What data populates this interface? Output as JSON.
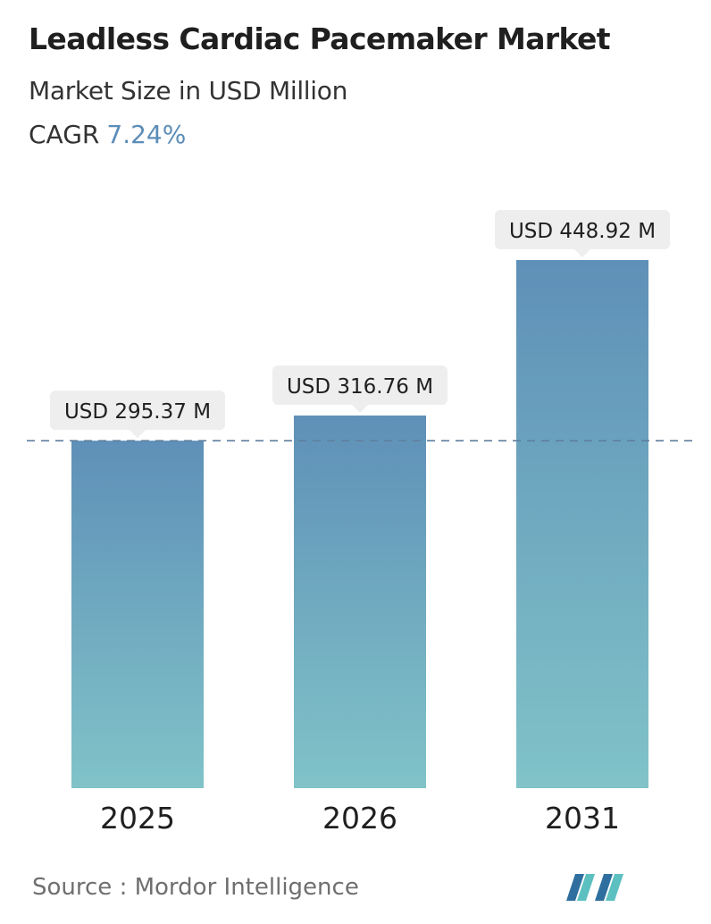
{
  "header": {
    "title": "Leadless Cardiac Pacemaker Market",
    "subtitle": "Market Size in USD Million",
    "cagr_label": "CAGR",
    "cagr_value": "7.24%"
  },
  "chart_data": {
    "type": "bar",
    "categories": [
      "2025",
      "2026",
      "2031"
    ],
    "values": [
      295.37,
      316.76,
      448.92
    ],
    "value_labels": [
      "USD 295.37 M",
      "USD 316.76 M",
      "USD 448.92 M"
    ],
    "reference_line": "dashed line at first bar value",
    "grid": false,
    "legend": "none"
  },
  "footer": {
    "source_label": "Source :",
    "source_name": "Mordor Intelligence",
    "logo_icon": "mordor-intelligence-logo-icon"
  },
  "colors": {
    "bar_top": "#5f90b8",
    "bar_bottom": "#80c3c8",
    "accent": "#5b8db8",
    "dashed_line": "#5f7f9f",
    "label_bg": "#eeeeee",
    "logo_dark": "#2f6f9f",
    "logo_light": "#5cc0c0"
  }
}
